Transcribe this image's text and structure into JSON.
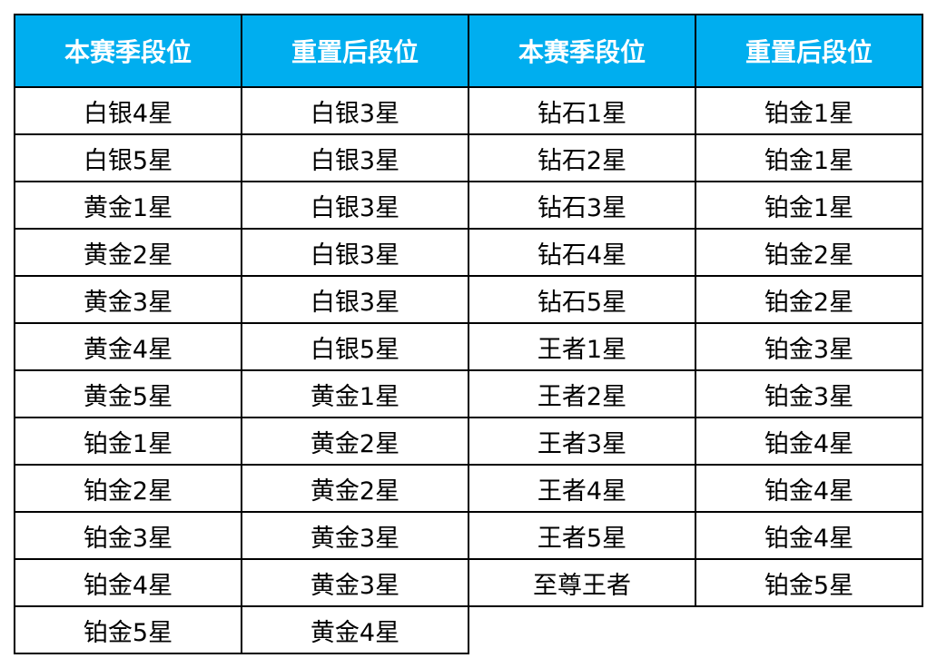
{
  "header_color": "#00aeef",
  "headers": [
    "本赛季段位",
    "重置后段位",
    "本赛季段位",
    "重置后段位"
  ],
  "left_table": [
    {
      "current": "白银4星",
      "reset": "白银3星"
    },
    {
      "current": "白银5星",
      "reset": "白银3星"
    },
    {
      "current": "黄金1星",
      "reset": "白银3星"
    },
    {
      "current": "黄金2星",
      "reset": "白银3星"
    },
    {
      "current": "黄金3星",
      "reset": "白银3星"
    },
    {
      "current": "黄金4星",
      "reset": "白银5星"
    },
    {
      "current": "黄金5星",
      "reset": "黄金1星"
    },
    {
      "current": "铂金1星",
      "reset": "黄金2星"
    },
    {
      "current": "铂金2星",
      "reset": "黄金2星"
    },
    {
      "current": "铂金3星",
      "reset": "黄金3星"
    },
    {
      "current": "铂金4星",
      "reset": "黄金3星"
    },
    {
      "current": "铂金5星",
      "reset": "黄金4星"
    }
  ],
  "right_table": [
    {
      "current": "钻石1星",
      "reset": "铂金1星"
    },
    {
      "current": "钻石2星",
      "reset": "铂金1星"
    },
    {
      "current": "钻石3星",
      "reset": "铂金1星"
    },
    {
      "current": "钻石4星",
      "reset": "铂金2星"
    },
    {
      "current": "钻石5星",
      "reset": "铂金2星"
    },
    {
      "current": "王者1星",
      "reset": "铂金3星"
    },
    {
      "current": "王者2星",
      "reset": "铂金3星"
    },
    {
      "current": "王者3星",
      "reset": "铂金4星"
    },
    {
      "current": "王者4星",
      "reset": "铂金4星"
    },
    {
      "current": "王者5星",
      "reset": "铂金4星"
    },
    {
      "current": "至尊王者",
      "reset": "铂金5星"
    }
  ]
}
